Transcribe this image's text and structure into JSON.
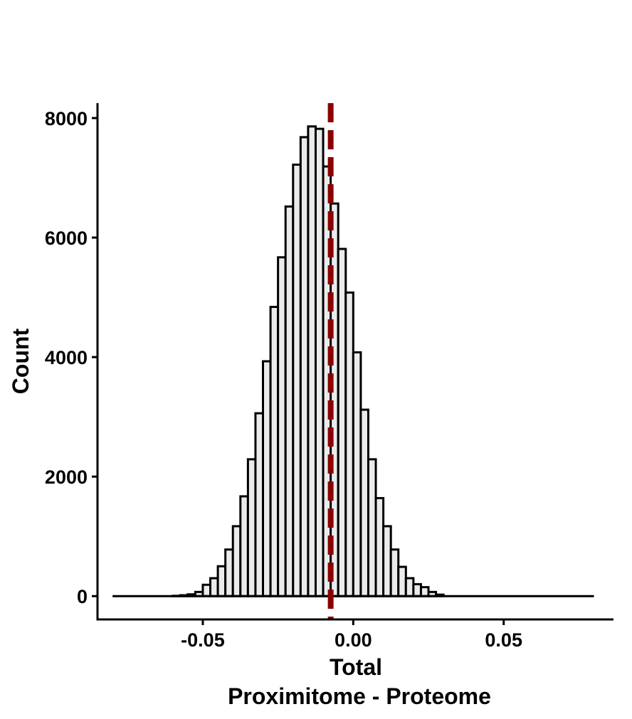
{
  "chart_data": {
    "type": "bar",
    "subtype": "histogram",
    "xlabel": "Total",
    "xlabel_sub": "Proximitome - Proteome",
    "ylabel": "Count",
    "xlim": [
      -0.085,
      0.0865
    ],
    "ylim": [
      -390,
      8250
    ],
    "x_ticks": [
      -0.05,
      0.0,
      0.05
    ],
    "x_tick_labels": [
      "-0.05",
      "0.00",
      "0.05"
    ],
    "y_ticks": [
      0,
      2000,
      4000,
      6000,
      8000
    ],
    "y_tick_labels": [
      "0",
      "2000",
      "4000",
      "6000",
      "8000"
    ],
    "baseline_range": [
      -0.08,
      0.08
    ],
    "bin_width": 0.0025,
    "bin_start": -0.06,
    "values": [
      5,
      15,
      30,
      70,
      190,
      300,
      500,
      780,
      1170,
      1670,
      2290,
      3060,
      3930,
      4840,
      5670,
      6520,
      7220,
      7680,
      7860,
      7820,
      7190,
      6570,
      5810,
      5080,
      4080,
      3120,
      2290,
      1640,
      1170,
      780,
      490,
      300,
      200,
      150,
      70,
      25
    ],
    "bar_fill": "#ebebeb",
    "bar_stroke": "#000000",
    "reference_line": {
      "x": -0.0075,
      "color": "#8b0000",
      "style": "dashed"
    },
    "grid": false,
    "legend": "none"
  }
}
